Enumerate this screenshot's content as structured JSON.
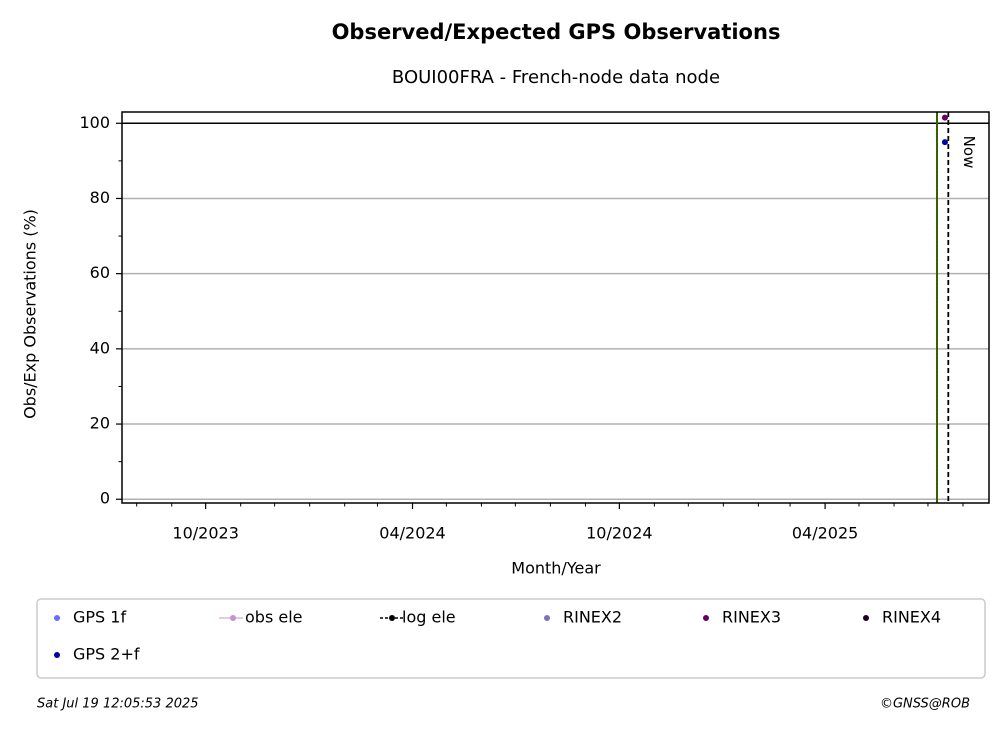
{
  "chart_data": {
    "type": "scatter",
    "title": "Observed/Expected GPS Observations",
    "subtitle": "BOUI00FRA - French-node data node",
    "x_label": "Month/Year",
    "y_label": "Obs/Exp Observations (%)",
    "xlim": [
      "2023-07-19",
      "2025-08-24"
    ],
    "ylim": [
      -1,
      103
    ],
    "xticks": [
      {
        "value": "2023-10-01",
        "label": "10/2023"
      },
      {
        "value": "2024-04-01",
        "label": "04/2024"
      },
      {
        "value": "2024-10-01",
        "label": "10/2024"
      },
      {
        "value": "2025-04-01",
        "label": "04/2025"
      }
    ],
    "xminorticks": [
      "2023-08-01",
      "2023-09-01",
      "2023-11-01",
      "2023-12-01",
      "2024-01-01",
      "2024-02-01",
      "2024-03-01",
      "2024-05-01",
      "2024-06-01",
      "2024-07-01",
      "2024-08-01",
      "2024-09-01",
      "2024-11-01",
      "2024-12-01",
      "2025-01-01",
      "2025-02-01",
      "2025-03-01",
      "2025-05-01",
      "2025-06-01",
      "2025-07-01",
      "2025-08-01"
    ],
    "yticks": [
      0,
      20,
      40,
      60,
      80,
      100
    ],
    "yminorticks": [
      10,
      30,
      50,
      70,
      90
    ],
    "grid": true,
    "hline": 100,
    "events": [
      {
        "x": "2025-07-09",
        "color": "#008000",
        "style": "solid"
      },
      {
        "x": "2025-07-09",
        "color": "#dd0000",
        "style": "dotted"
      }
    ],
    "now": {
      "x": "2025-07-19",
      "label": "Now"
    },
    "series": [
      {
        "name": "GPS 1f",
        "color": "#6b6bff",
        "marker": "dot",
        "x": [],
        "values": []
      },
      {
        "name": "obs ele",
        "color": "#c890d0",
        "marker": "line-dot",
        "x": [],
        "values": []
      },
      {
        "name": "log ele",
        "color": "#000000",
        "marker": "dash-dot",
        "x": [],
        "values": []
      },
      {
        "name": "RINEX2",
        "color": "#7a74b8",
        "marker": "dot",
        "x": [],
        "values": []
      },
      {
        "name": "RINEX3",
        "color": "#660066",
        "marker": "dot",
        "x": [
          "2025-07-16"
        ],
        "values": [
          101.5
        ]
      },
      {
        "name": "RINEX4",
        "color": "#220022",
        "marker": "dot",
        "x": [],
        "values": []
      },
      {
        "name": "GPS 2+f",
        "color": "#0000aa",
        "marker": "dot",
        "x": [
          "2025-07-16"
        ],
        "values": [
          95
        ]
      }
    ],
    "footer_left": "Sat Jul 19 12:05:53 2025",
    "footer_right": "©GNSS@ROB"
  }
}
